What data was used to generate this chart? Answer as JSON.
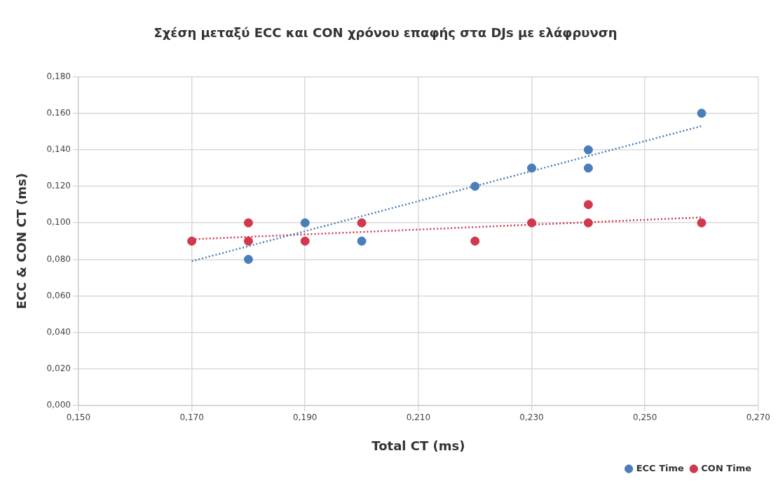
{
  "chart_data": {
    "type": "scatter",
    "title": "Σχέση μεταξύ ECC και CON χρόνου επαφής στα DJs με ελάφρυνση",
    "xlabel": "Total CT (ms)",
    "ylabel": "ECC & CON CT (ms)",
    "series": [
      {
        "name": "ECC Time",
        "color": "#4a7ebb",
        "x": [
          0.18,
          0.19,
          0.2,
          0.22,
          0.23,
          0.24,
          0.24,
          0.26
        ],
        "values": [
          0.08,
          0.1,
          0.09,
          0.12,
          0.13,
          0.14,
          0.13,
          0.16
        ]
      },
      {
        "name": "CON Time",
        "color": "#d0384f",
        "x": [
          0.17,
          0.18,
          0.18,
          0.19,
          0.2,
          0.22,
          0.23,
          0.24,
          0.24,
          0.26
        ],
        "values": [
          0.09,
          0.1,
          0.09,
          0.09,
          0.1,
          0.09,
          0.1,
          0.11,
          0.1,
          0.1
        ]
      },
      {
        "type": "line",
        "color": "#4a7ebb",
        "line_style": "dotted",
        "marker": "none",
        "x": [
          0.17,
          0.26
        ],
        "values": [
          0.079,
          0.153
        ]
      },
      {
        "type": "line",
        "color": "#d0384f",
        "line_style": "dotted",
        "marker": "none",
        "x": [
          0.17,
          0.26
        ],
        "values": [
          0.091,
          0.103
        ]
      }
    ],
    "xlim": [
      0.15,
      0.27
    ],
    "xticks": [
      {
        "value": 0.15,
        "label": "0,150"
      },
      {
        "value": 0.17,
        "label": "0,170"
      },
      {
        "value": 0.19,
        "label": "0,190"
      },
      {
        "value": 0.21,
        "label": "0,210"
      },
      {
        "value": 0.23,
        "label": "0,230"
      },
      {
        "value": 0.25,
        "label": "0,250"
      },
      {
        "value": 0.27,
        "label": "0,270"
      }
    ],
    "ylim": [
      0,
      0.18
    ],
    "yticks": [
      {
        "value": 0,
        "label": "0,000"
      },
      {
        "value": 0.02,
        "label": "0,020"
      },
      {
        "value": 0.04,
        "label": "0,040"
      },
      {
        "value": 0.06,
        "label": "0,060"
      },
      {
        "value": 0.08,
        "label": "0,080"
      },
      {
        "value": 0.1,
        "label": "0,100"
      },
      {
        "value": 0.12,
        "label": "0,120"
      },
      {
        "value": 0.14,
        "label": "0,140"
      },
      {
        "value": 0.16,
        "label": "0,160"
      },
      {
        "value": 0.18,
        "label": "0,180"
      }
    ],
    "grid": true,
    "legend": "bottom right",
    "marker": "circle"
  }
}
